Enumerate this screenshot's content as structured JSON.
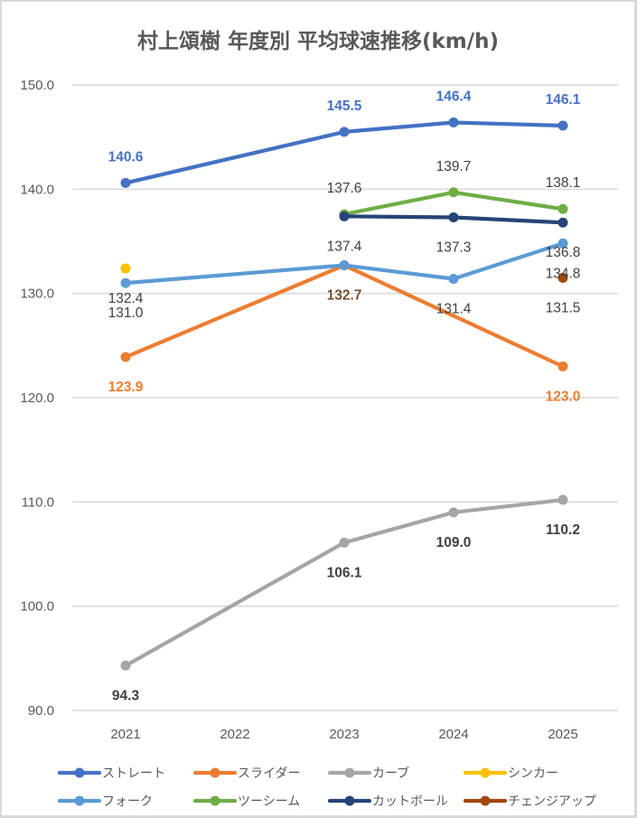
{
  "chart_data": {
    "type": "line",
    "title": "村上頌樹  年度別 平均球速推移(km/h)",
    "xlabel": "",
    "ylabel": "",
    "categories": [
      "2021",
      "2022",
      "2023",
      "2024",
      "2025"
    ],
    "ylim": [
      90,
      150
    ],
    "yticks": [
      90,
      100,
      110,
      120,
      130,
      140,
      150
    ],
    "ytick_labels": [
      "90.0",
      "100.0",
      "110.0",
      "120.0",
      "130.0",
      "140.0",
      "150.0"
    ],
    "grid": "horizontal",
    "legend_position": "bottom",
    "gaps": "connected",
    "series": [
      {
        "name": "ストレート",
        "color": "#4472C4",
        "label_color": "#4472C4",
        "label_position": "above",
        "values": [
          140.6,
          null,
          145.5,
          146.4,
          146.1
        ],
        "labels": [
          "140.6",
          null,
          "145.5",
          "146.4",
          "146.1"
        ]
      },
      {
        "name": "スライダー",
        "color": "#ED7D31",
        "label_color": "#ED7D31",
        "label_position": "below",
        "values": [
          123.9,
          null,
          132.7,
          null,
          123.0
        ],
        "labels": [
          "123.9",
          null,
          "132.7",
          null,
          "123.0"
        ]
      },
      {
        "name": "カーブ",
        "color": "#A5A5A5",
        "label_color": "#404040",
        "label_position": "below",
        "values": [
          94.3,
          null,
          106.1,
          109.0,
          110.2
        ],
        "labels": [
          "94.3",
          null,
          "106.1",
          "109.0",
          "110.2"
        ]
      },
      {
        "name": "シンカー",
        "color": "#FFC000",
        "label_color": "#404040",
        "label_position": "below",
        "values": [
          132.4,
          null,
          null,
          null,
          null
        ],
        "labels": [
          "132.4",
          null,
          null,
          null,
          null
        ]
      },
      {
        "name": "フォーク",
        "color": "#5B9BD5",
        "label_color": "#404040",
        "label_position": "below",
        "values": [
          131.0,
          null,
          132.7,
          131.4,
          134.8
        ],
        "labels": [
          "131.0",
          null,
          "132.7",
          "131.4",
          "134.8"
        ]
      },
      {
        "name": "ツーシーム",
        "color": "#70AD47",
        "label_color": "#404040",
        "label_position": "above",
        "values": [
          null,
          null,
          137.6,
          139.7,
          138.1
        ],
        "labels": [
          null,
          null,
          "137.6",
          "139.7",
          "138.1"
        ]
      },
      {
        "name": "カットボール",
        "color": "#264478",
        "label_color": "#404040",
        "label_position": "below",
        "values": [
          null,
          null,
          137.4,
          137.3,
          136.8
        ],
        "labels": [
          null,
          null,
          "137.4",
          "137.3",
          "136.8"
        ]
      },
      {
        "name": "チェンジアップ",
        "color": "#9E480E",
        "label_color": "#404040",
        "label_position": "below",
        "values": [
          null,
          null,
          null,
          null,
          131.5
        ],
        "labels": [
          null,
          null,
          null,
          null,
          "131.5"
        ]
      }
    ]
  }
}
